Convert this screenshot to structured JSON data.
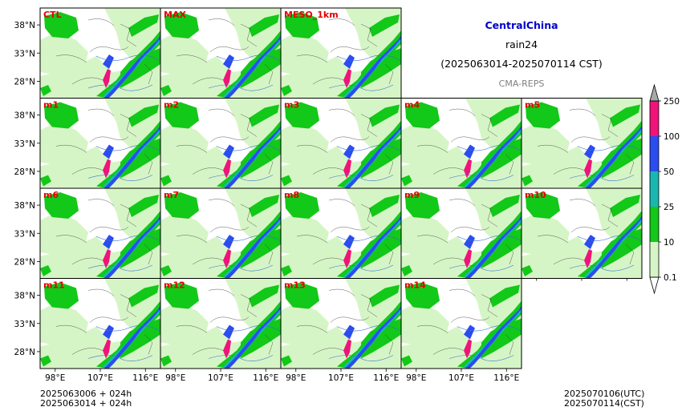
{
  "title": {
    "region": "CentralChina",
    "variable": "rain24",
    "period": "(2025063014-2025070114 CST)",
    "model": "CMA-REPS"
  },
  "colors": {
    "title_region": "#0000cc",
    "panel_label": "#e60000",
    "light_green": "#d6f5c6",
    "green": "#12c818",
    "teal": "#18b8b0",
    "blue": "#2a4cf0",
    "magenta": "#f0137a",
    "over": "#a8a8a8",
    "under": "#ffffff"
  },
  "panels": [
    [
      "CTL",
      "MAX",
      "MESO_1km"
    ],
    [
      "m1",
      "m2",
      "m3",
      "m4",
      "m5"
    ],
    [
      "m6",
      "m7",
      "m8",
      "m9",
      "m10"
    ],
    [
      "m11",
      "m12",
      "m13",
      "m14"
    ]
  ],
  "map": {
    "lat_ticks": [
      "38°N",
      "33°N",
      "28°N"
    ],
    "lon_ticks": [
      "98°E",
      "107°E",
      "116°E"
    ],
    "lat_values": [
      38,
      33,
      28
    ],
    "lon_values": [
      98,
      107,
      116
    ]
  },
  "colorbar": {
    "levels": [
      "0.1",
      "10",
      "25",
      "50",
      "100",
      "250"
    ],
    "colors": [
      "#d6f5c6",
      "#12c818",
      "#18b8b0",
      "#2a4cf0",
      "#f0137a"
    ],
    "extend_over_color": "#a8a8a8",
    "extend_under_color": "#ffffff"
  },
  "footer": {
    "left_line1": "2025063006  +  024h",
    "left_line2": "2025063014  +  024h",
    "right_line1": "2025070106(UTC)",
    "right_line2": "2025070114(CST)"
  }
}
